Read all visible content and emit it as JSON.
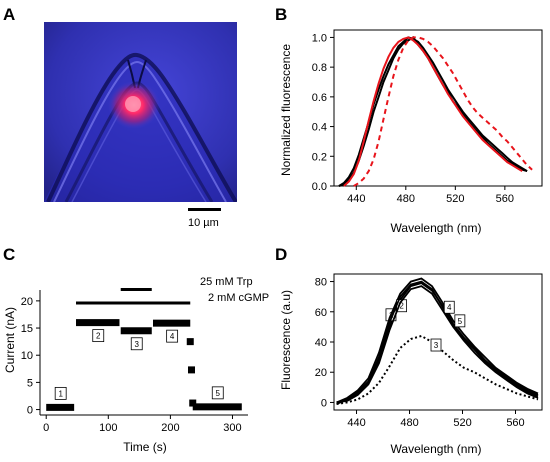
{
  "panels": {
    "a": {
      "letter": "A",
      "scale_bar_label": "10 µm"
    },
    "b": {
      "letter": "B"
    },
    "c": {
      "letter": "C"
    },
    "d": {
      "letter": "D"
    }
  },
  "colors": {
    "red_trace": "#e8141b",
    "black_trace": "#000000",
    "image_blue": "#3a3bd0",
    "image_glow": "#ff2a6a"
  },
  "chart_data": [
    {
      "panel": "B",
      "type": "line",
      "xlabel": "Wavelength (nm)",
      "ylabel": "Normalized fluorescence",
      "xlim": [
        422,
        590
      ],
      "ylim": [
        0,
        1.05
      ],
      "x_ticks": [
        440,
        480,
        520,
        560
      ],
      "y_ticks": [
        0.0,
        0.2,
        0.4,
        0.6,
        0.8,
        1.0
      ],
      "grid": false,
      "series": [
        {
          "style": "solid",
          "color": "#000000",
          "x": [
            426,
            430,
            434,
            438,
            442,
            446,
            450,
            454,
            458,
            462,
            466,
            470,
            474,
            478,
            482,
            486,
            490,
            494,
            498,
            502,
            506,
            510,
            514,
            518,
            522,
            526,
            530,
            534,
            538,
            542,
            546,
            550,
            554,
            558,
            562,
            566,
            570,
            574,
            578
          ],
          "y": [
            0.0,
            0.01,
            0.04,
            0.09,
            0.17,
            0.27,
            0.38,
            0.5,
            0.6,
            0.7,
            0.78,
            0.86,
            0.92,
            0.96,
            0.98,
            1.0,
            0.95,
            0.91,
            0.86,
            0.8,
            0.74,
            0.68,
            0.63,
            0.57,
            0.53,
            0.48,
            0.44,
            0.4,
            0.36,
            0.33,
            0.29,
            0.26,
            0.23,
            0.2,
            0.17,
            0.15,
            0.13,
            0.11,
            0.1
          ]
        },
        {
          "style": "solid",
          "color": "#000000",
          "x": [
            426,
            430,
            434,
            438,
            442,
            446,
            450,
            454,
            458,
            462,
            466,
            470,
            474,
            478,
            482,
            486,
            490,
            494,
            498,
            502,
            506,
            510,
            514,
            518,
            522,
            526,
            530,
            534,
            538,
            542,
            546,
            550,
            554,
            558,
            562,
            566,
            570,
            574,
            578
          ],
          "y": [
            0.0,
            0.02,
            0.06,
            0.12,
            0.21,
            0.32,
            0.43,
            0.55,
            0.65,
            0.74,
            0.82,
            0.88,
            0.94,
            0.97,
            1.0,
            0.99,
            0.97,
            0.93,
            0.88,
            0.83,
            0.77,
            0.71,
            0.65,
            0.6,
            0.55,
            0.5,
            0.46,
            0.42,
            0.38,
            0.34,
            0.31,
            0.28,
            0.25,
            0.22,
            0.19,
            0.16,
            0.14,
            0.12,
            0.1
          ]
        },
        {
          "style": "solid",
          "color": "#e8141b",
          "x": [
            430,
            434,
            438,
            442,
            446,
            450,
            454,
            458,
            462,
            466,
            470,
            474,
            478,
            482,
            486,
            490,
            494,
            498,
            502,
            506,
            510,
            514,
            518,
            522,
            526,
            530,
            534,
            538,
            542,
            546,
            550,
            554,
            558,
            562,
            566,
            570,
            574
          ],
          "y": [
            0.0,
            0.03,
            0.08,
            0.17,
            0.3,
            0.44,
            0.57,
            0.69,
            0.79,
            0.87,
            0.93,
            0.97,
            0.99,
            1.0,
            0.98,
            0.95,
            0.91,
            0.86,
            0.8,
            0.74,
            0.68,
            0.62,
            0.57,
            0.52,
            0.47,
            0.43,
            0.39,
            0.35,
            0.31,
            0.28,
            0.25,
            0.22,
            0.19,
            0.16,
            0.14,
            0.12,
            0.1
          ]
        },
        {
          "style": "dashed",
          "color": "#e8141b",
          "x": [
            438,
            442,
            446,
            450,
            454,
            458,
            462,
            466,
            470,
            474,
            478,
            482,
            486,
            490,
            494,
            498,
            502,
            506,
            510,
            514,
            518,
            522,
            526,
            530,
            534,
            538,
            542,
            546,
            550,
            554,
            558,
            562,
            566,
            570,
            574,
            578,
            582
          ],
          "y": [
            0.0,
            0.02,
            0.05,
            0.1,
            0.18,
            0.3,
            0.45,
            0.6,
            0.74,
            0.85,
            0.93,
            0.98,
            1.0,
            1.0,
            0.99,
            0.97,
            0.94,
            0.9,
            0.86,
            0.81,
            0.76,
            0.7,
            0.64,
            0.58,
            0.53,
            0.49,
            0.46,
            0.43,
            0.4,
            0.37,
            0.33,
            0.3,
            0.26,
            0.22,
            0.18,
            0.14,
            0.11
          ]
        }
      ]
    },
    {
      "panel": "C",
      "type": "scatter",
      "xlabel": "Time (s)",
      "ylabel": "Current (nA)",
      "xlim": [
        -10,
        325
      ],
      "ylim": [
        -1,
        22
      ],
      "x_ticks": [
        0,
        100,
        200,
        300
      ],
      "y_ticks": [
        0,
        5,
        10,
        15,
        20
      ],
      "grid": false,
      "bars": [
        {
          "label": "25 mM Trp",
          "x_start": 120,
          "x_end": 170,
          "y": 22.1
        },
        {
          "label": "2 mM cGMP",
          "x_start": 48,
          "x_end": 232,
          "y": 19.6
        }
      ],
      "segments": [
        {
          "box": "1",
          "x_start": 0,
          "x_end": 45,
          "y": 0.4
        },
        {
          "box": "2",
          "x_start": 48,
          "x_end": 118,
          "y": 16.0
        },
        {
          "box": "3",
          "x_start": 120,
          "x_end": 170,
          "y": 14.5
        },
        {
          "box": "4",
          "x_start": 172,
          "x_end": 232,
          "y": 15.9
        },
        {
          "box": "5",
          "x_start": 236,
          "x_end": 315,
          "y": 0.5
        }
      ],
      "extra_points": [
        {
          "x": 232,
          "y": 12.5
        },
        {
          "x": 234,
          "y": 7.3
        },
        {
          "x": 236,
          "y": 1.2
        }
      ]
    },
    {
      "panel": "D",
      "type": "line",
      "xlabel": "Wavelength (nm)",
      "ylabel": "Fluorescence (a.u)",
      "xlim": [
        423,
        580
      ],
      "ylim": [
        -5,
        85
      ],
      "x_ticks": [
        440,
        480,
        520,
        560
      ],
      "y_ticks": [
        0,
        20,
        40,
        60,
        80
      ],
      "grid": false,
      "series": [
        {
          "label": "1",
          "style": "solid",
          "x": [
            425,
            433,
            441,
            449,
            457,
            465,
            473,
            481,
            489,
            497,
            505,
            513,
            521,
            529,
            537,
            545,
            553,
            561,
            569,
            577
          ],
          "y": [
            0,
            2,
            6,
            13,
            28,
            50,
            68,
            77,
            79,
            74,
            64,
            52,
            43,
            36,
            28,
            22,
            17,
            12,
            8,
            5
          ]
        },
        {
          "label": "2",
          "style": "solid",
          "x": [
            425,
            433,
            441,
            449,
            457,
            465,
            473,
            481,
            489,
            497,
            505,
            513,
            521,
            529,
            537,
            545,
            553,
            561,
            569,
            577
          ],
          "y": [
            0,
            3,
            8,
            16,
            33,
            56,
            72,
            80,
            82,
            77,
            66,
            54,
            45,
            37,
            30,
            23,
            18,
            13,
            9,
            6
          ]
        },
        {
          "label": "4",
          "style": "solid",
          "x": [
            425,
            433,
            441,
            449,
            457,
            465,
            473,
            481,
            489,
            497,
            505,
            513,
            521,
            529,
            537,
            545,
            553,
            561,
            569,
            577
          ],
          "y": [
            -1,
            2,
            7,
            14,
            30,
            53,
            70,
            78,
            80,
            75,
            63,
            51,
            42,
            35,
            27,
            21,
            16,
            11,
            7,
            4
          ]
        },
        {
          "label": "5",
          "style": "solid",
          "x": [
            425,
            433,
            441,
            449,
            457,
            465,
            473,
            481,
            489,
            497,
            505,
            513,
            521,
            529,
            537,
            545,
            553,
            561,
            569,
            577
          ],
          "y": [
            0,
            1,
            5,
            12,
            26,
            48,
            66,
            75,
            77,
            72,
            61,
            50,
            41,
            33,
            26,
            20,
            15,
            10,
            6,
            3
          ]
        },
        {
          "label": "3",
          "style": "dotted",
          "x": [
            425,
            433,
            441,
            449,
            457,
            465,
            473,
            481,
            489,
            497,
            505,
            513,
            521,
            529,
            537,
            545,
            553,
            561,
            569,
            577
          ],
          "y": [
            -1,
            0,
            2,
            6,
            13,
            24,
            36,
            42,
            44,
            40,
            34,
            28,
            23,
            20,
            16,
            12,
            9,
            6,
            4,
            2
          ]
        }
      ]
    }
  ]
}
